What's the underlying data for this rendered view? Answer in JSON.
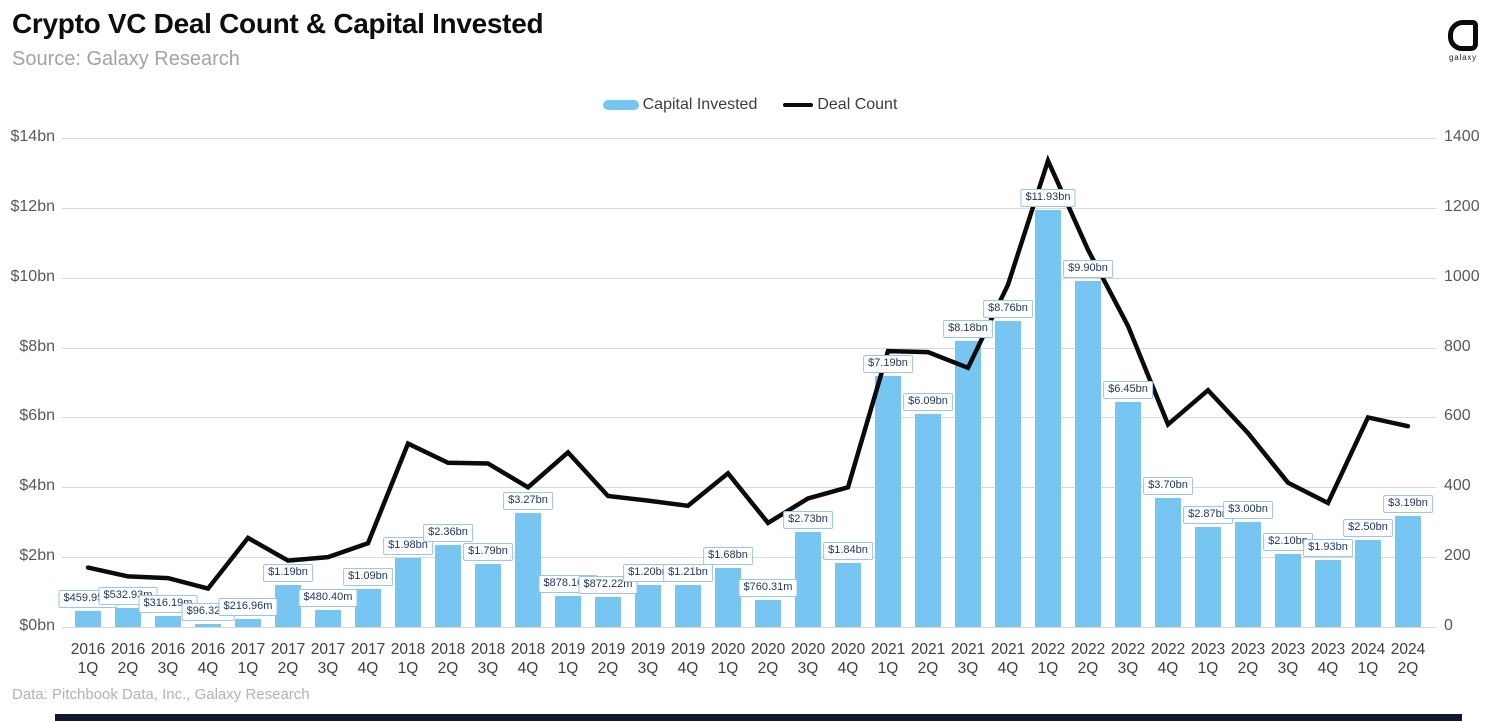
{
  "header": {
    "title": "Crypto VC Deal Count & Capital Invested",
    "source": "Source: Galaxy Research",
    "logo_text": "galaxy"
  },
  "legend": {
    "capital_invested": "Capital Invested",
    "deal_count": "Deal Count"
  },
  "footer": {
    "credit": "Data: Pitchbook Data, Inc., Galaxy Research"
  },
  "colors": {
    "bar_fill": "#76C6F1",
    "line_stroke": "#0b0b0b",
    "label_border": "#9DC3E6",
    "label_text": "#1F3864",
    "grid": "#d9d9d9",
    "axis_text": "#595959",
    "footer_bar": "#131830"
  },
  "chart_data": {
    "type": "bar+line combo",
    "title": "Crypto VC Deal Count & Capital Invested",
    "grid": true,
    "legend_position": "top-center",
    "categories": [
      {
        "year": "2016",
        "q": "1Q"
      },
      {
        "year": "2016",
        "q": "2Q"
      },
      {
        "year": "2016",
        "q": "3Q"
      },
      {
        "year": "2016",
        "q": "4Q"
      },
      {
        "year": "2017",
        "q": "1Q"
      },
      {
        "year": "2017",
        "q": "2Q"
      },
      {
        "year": "2017",
        "q": "3Q"
      },
      {
        "year": "2017",
        "q": "4Q"
      },
      {
        "year": "2018",
        "q": "1Q"
      },
      {
        "year": "2018",
        "q": "2Q"
      },
      {
        "year": "2018",
        "q": "3Q"
      },
      {
        "year": "2018",
        "q": "4Q"
      },
      {
        "year": "2019",
        "q": "1Q"
      },
      {
        "year": "2019",
        "q": "2Q"
      },
      {
        "year": "2019",
        "q": "3Q"
      },
      {
        "year": "2019",
        "q": "4Q"
      },
      {
        "year": "2020",
        "q": "1Q"
      },
      {
        "year": "2020",
        "q": "2Q"
      },
      {
        "year": "2020",
        "q": "3Q"
      },
      {
        "year": "2020",
        "q": "4Q"
      },
      {
        "year": "2021",
        "q": "1Q"
      },
      {
        "year": "2021",
        "q": "2Q"
      },
      {
        "year": "2021",
        "q": "3Q"
      },
      {
        "year": "2021",
        "q": "4Q"
      },
      {
        "year": "2022",
        "q": "1Q"
      },
      {
        "year": "2022",
        "q": "2Q"
      },
      {
        "year": "2022",
        "q": "3Q"
      },
      {
        "year": "2022",
        "q": "4Q"
      },
      {
        "year": "2023",
        "q": "1Q"
      },
      {
        "year": "2023",
        "q": "2Q"
      },
      {
        "year": "2023",
        "q": "3Q"
      },
      {
        "year": "2023",
        "q": "4Q"
      },
      {
        "year": "2024",
        "q": "1Q"
      },
      {
        "year": "2024",
        "q": "2Q"
      }
    ],
    "series": [
      {
        "name": "Capital Invested",
        "type": "bar",
        "axis": "left",
        "unit": "USD billions",
        "values_bn": [
          0.45995,
          0.53293,
          0.31619,
          0.09632,
          0.21696,
          1.19,
          0.4804,
          1.09,
          1.98,
          2.36,
          1.79,
          3.27,
          0.8781,
          0.87222,
          1.2,
          1.21,
          1.68,
          0.76031,
          2.73,
          1.84,
          7.19,
          6.09,
          8.18,
          8.76,
          11.93,
          9.9,
          6.45,
          3.7,
          2.87,
          3.0,
          2.1,
          1.93,
          2.5,
          3.19
        ],
        "labels": [
          "$459.95m",
          "$532.93m",
          "$316.19m",
          "$96.32m",
          "$216.96m",
          "$1.19bn",
          "$480.40m",
          "$1.09bn",
          "$1.98bn",
          "$2.36bn",
          "$1.79bn",
          "$3.27bn",
          "$878.10m",
          "$872.22m",
          "$1.20bn",
          "$1.21bn",
          "$1.68bn",
          "$760.31m",
          "$2.73bn",
          "$1.84bn",
          "$7.19bn",
          "$6.09bn",
          "$8.18bn",
          "$8.76bn",
          "$11.93bn",
          "$9.90bn",
          "$6.45bn",
          "$3.70bn",
          "$2.87bn",
          "$3.00bn",
          "$2.10bn",
          "$1.93bn",
          "$2.50bn",
          "$3.19bn"
        ]
      },
      {
        "name": "Deal Count",
        "type": "line",
        "axis": "right",
        "values": [
          170,
          145,
          140,
          110,
          255,
          190,
          200,
          240,
          525,
          470,
          468,
          400,
          500,
          375,
          362,
          347,
          440,
          298,
          368,
          400,
          790,
          787,
          742,
          980,
          1335,
          1080,
          862,
          580,
          678,
          555,
          413,
          355,
          600,
          575
        ]
      }
    ],
    "left_axis": {
      "label": "Capital Invested",
      "min": 0,
      "max": 14,
      "tick_labels": [
        "$0bn",
        "$2bn",
        "$4bn",
        "$6bn",
        "$8bn",
        "$10bn",
        "$12bn",
        "$14bn"
      ]
    },
    "right_axis": {
      "label": "Deal Count",
      "min": 0,
      "max": 1400,
      "tick_labels": [
        "0",
        "200",
        "400",
        "600",
        "800",
        "1000",
        "1200",
        "1400"
      ]
    }
  }
}
